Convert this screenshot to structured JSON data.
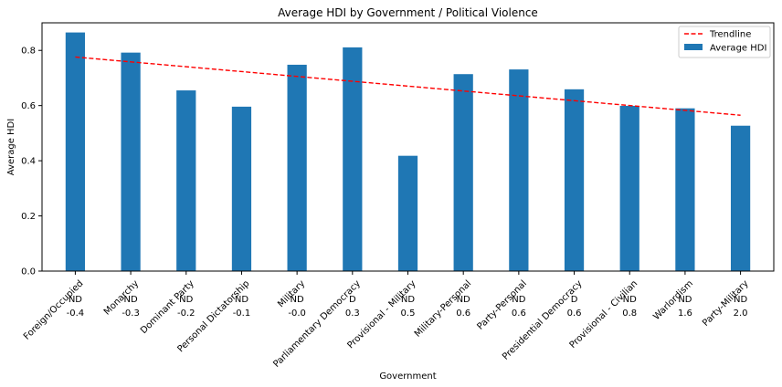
{
  "chart_data": {
    "type": "bar",
    "title": "Average HDI by Government / Political Violence",
    "xlabel": "Government",
    "ylabel": "Average HDI",
    "ylim": [
      0,
      0.9
    ],
    "yticks": [
      "0.0",
      "0.2",
      "0.4",
      "0.6",
      "0.8"
    ],
    "categories": [
      "Foreign/Occupied",
      "Monarchy",
      "Dominant Party",
      "Personal Dictatorship",
      "Military",
      "Parliamentary Democracy",
      "Provisional - Military",
      "Military-Personal",
      "Party-Personal",
      "Presidential Democracy",
      "Provisional - Civilian",
      "Warlordism",
      "Party-Military"
    ],
    "series": [
      {
        "name": "Average HDI",
        "type": "bar",
        "color": "#1f77b4",
        "values": [
          0.865,
          0.792,
          0.655,
          0.596,
          0.748,
          0.811,
          0.418,
          0.714,
          0.731,
          0.659,
          0.599,
          0.59,
          0.527
        ]
      },
      {
        "name": "Trendline",
        "type": "line",
        "style": "dashed",
        "color": "#ff0000",
        "start": 0.776,
        "end": 0.565
      }
    ],
    "violence_labels": [
      "ND",
      "ND",
      "ND",
      "ND",
      "ND",
      "D",
      "ND",
      "ND",
      "ND",
      "D",
      "ND",
      "ND",
      "ND"
    ],
    "violence_colors": {
      "ND": "#ff0000",
      "D": "#008000"
    },
    "violence_values": [
      "-0.4",
      "-0.3",
      "-0.2",
      "-0.1",
      "-0.0",
      "0.3",
      "0.5",
      "0.6",
      "0.6",
      "0.6",
      "0.8",
      "1.6",
      "2.0"
    ],
    "legend": {
      "position": "top-right",
      "entries": [
        "Trendline",
        "Average HDI"
      ]
    },
    "grid": false
  }
}
